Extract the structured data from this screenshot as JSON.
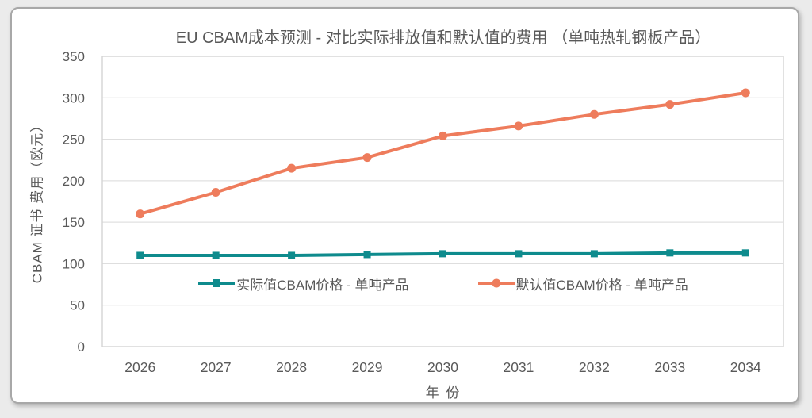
{
  "page": {
    "background_color": "#ebebeb",
    "card_background": "#ffffff",
    "card_border_color": "#a8a8a8"
  },
  "chart_data": {
    "type": "line",
    "title": "EU CBAM成本预测 - 对比实际排放值和默认值的费用 （单吨热轧钢板产品）",
    "xlabel": "年 份",
    "ylabel": "CBAM 证书 费用（欧元）",
    "categories": [
      "2026",
      "2027",
      "2028",
      "2029",
      "2030",
      "2031",
      "2032",
      "2033",
      "2034"
    ],
    "series": [
      {
        "name": "实际值CBAM价格 - 单吨产品",
        "values": [
          110,
          110,
          110,
          111,
          112,
          112,
          112,
          113,
          113
        ],
        "color": "#0e8b8d",
        "marker": "square"
      },
      {
        "name": "默认值CBAM价格 - 单吨产品",
        "values": [
          160,
          186,
          215,
          228,
          254,
          266,
          280,
          292,
          306
        ],
        "color": "#ee7c5c",
        "marker": "circle"
      }
    ],
    "ylim": [
      0,
      350
    ],
    "yticks": [
      0,
      50,
      100,
      150,
      200,
      250,
      300,
      350
    ],
    "ytick_step": 50,
    "grid": "horizontal",
    "grid_color": "#d9d9d9",
    "plot_border_color": "#d4d4d4",
    "text_color": "#595959",
    "legend_position": "inside-bottom-center"
  }
}
